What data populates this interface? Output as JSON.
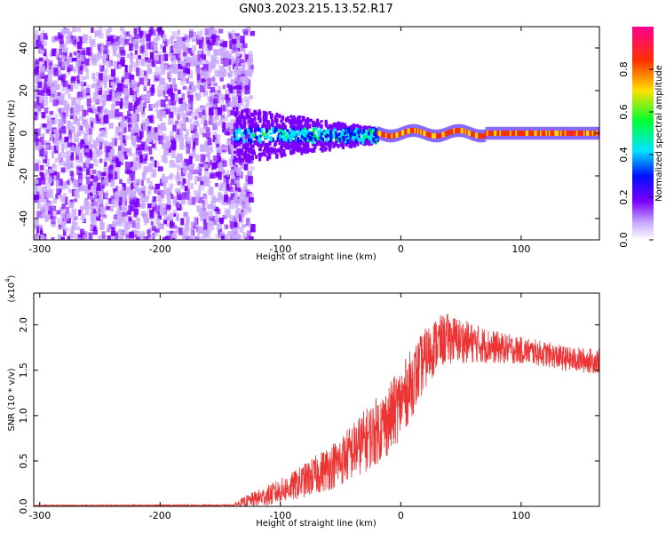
{
  "title": "GN03.2023.215.13.52.R17",
  "chart_data": [
    {
      "type": "heatmap",
      "xlabel": "Height of straight line (km)",
      "ylabel": "Frequency (Hz)",
      "xlim": [
        -305,
        165
      ],
      "ylim": [
        -50,
        50
      ],
      "xticks": [
        -300,
        -200,
        -100,
        0,
        100
      ],
      "yticks": [
        -40,
        -20,
        0,
        20,
        40
      ],
      "colorbar": {
        "label": "Normalized spectral amplitude",
        "range": [
          0,
          1
        ],
        "ticks": [
          "0.0",
          "0.2",
          "0.4",
          "0.6",
          "0.8"
        ],
        "stops": [
          "#ffffff",
          "#c9a8ff",
          "#7b00ff",
          "#0010ff",
          "#00e5ff",
          "#00ff30",
          "#ffe000",
          "#ff3000",
          "#ff0090"
        ]
      },
      "description_regions": [
        {
          "x_range": [
            -305,
            -140
          ],
          "freq_range": [
            -50,
            50
          ],
          "level": 0.12
        },
        {
          "x_range": [
            -140,
            -20
          ],
          "freq_range": [
            -8,
            8
          ],
          "level": 0.35
        },
        {
          "x_range": [
            -20,
            165
          ],
          "freq_range": [
            -2,
            2
          ],
          "level": 0.9
        }
      ]
    },
    {
      "type": "line",
      "xlabel": "Height of straight line (km)",
      "ylabel": "SNR (10 * v/v)",
      "y_multiplier": "(x10",
      "y_multiplier_exp": "4",
      "y_multiplier_close": ")",
      "xlim": [
        -305,
        165
      ],
      "ylim": [
        0,
        2.35
      ],
      "xticks": [
        -300,
        -200,
        -100,
        0,
        100
      ],
      "yticks": [
        "0.0",
        "0.5",
        "1.0",
        "1.5",
        "2.0"
      ],
      "color": "#ee3333",
      "envelope": {
        "x": [
          -305,
          -140,
          -130,
          -110,
          -90,
          -70,
          -50,
          -30,
          -10,
          0,
          10,
          20,
          30,
          40,
          60,
          80,
          100,
          120,
          140,
          165
        ],
        "mean": [
          0.01,
          0.01,
          0.05,
          0.12,
          0.22,
          0.35,
          0.5,
          0.72,
          0.95,
          1.15,
          1.38,
          1.62,
          1.8,
          1.85,
          1.8,
          1.75,
          1.72,
          1.68,
          1.62,
          1.6
        ],
        "amp": [
          0.005,
          0.01,
          0.06,
          0.12,
          0.16,
          0.22,
          0.28,
          0.35,
          0.4,
          0.4,
          0.38,
          0.34,
          0.3,
          0.28,
          0.22,
          0.18,
          0.15,
          0.14,
          0.14,
          0.14
        ]
      }
    }
  ]
}
